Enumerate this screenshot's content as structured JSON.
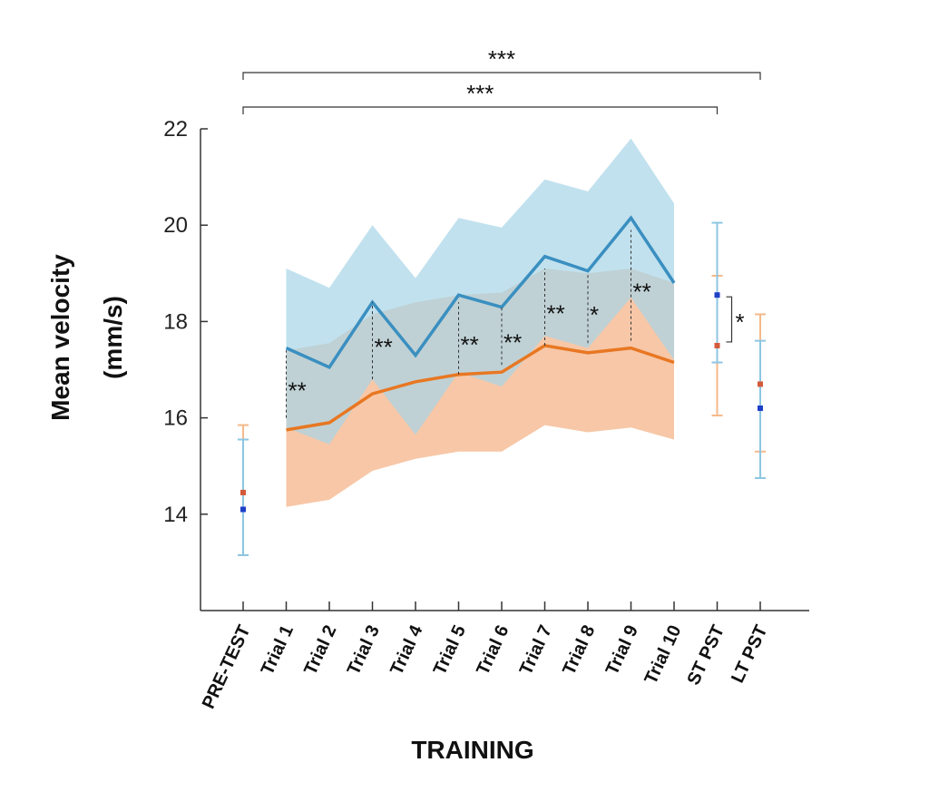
{
  "chart_data": {
    "type": "line",
    "title": "",
    "xlabel": "TRAINING",
    "ylabel": [
      "Mean velocity",
      "(mm/s)"
    ],
    "ylim": [
      12,
      22
    ],
    "yticks": [
      14,
      16,
      18,
      20,
      22
    ],
    "categories": [
      "PRE-TEST",
      "Trial 1",
      "Trial 2",
      "Trial 3",
      "Trial 4",
      "Trial 5",
      "Trial 6",
      "Trial 7",
      "Trial 8",
      "Trial 9",
      "Trial 10",
      "ST PST",
      "LT PST"
    ],
    "training_series": [
      {
        "color": "#3a8fc0",
        "band_color": "#a9d6e8",
        "mean": [
          17.45,
          17.05,
          18.4,
          17.3,
          18.55,
          18.3,
          19.35,
          19.05,
          20.15,
          18.8
        ],
        "upper": [
          19.1,
          18.7,
          20.0,
          18.9,
          20.15,
          19.95,
          20.95,
          20.7,
          21.8,
          20.45
        ],
        "lower": [
          15.8,
          15.45,
          16.8,
          15.65,
          16.95,
          16.65,
          17.7,
          17.45,
          18.5,
          17.2
        ]
      },
      {
        "color": "#e87722",
        "band_color": "#f7c4a2",
        "mean": [
          15.75,
          15.9,
          16.5,
          16.75,
          16.9,
          16.95,
          17.5,
          17.35,
          17.45,
          17.15
        ],
        "upper": [
          17.4,
          17.55,
          18.15,
          18.4,
          18.55,
          18.6,
          19.1,
          19.0,
          19.1,
          18.8
        ],
        "lower": [
          14.15,
          14.3,
          14.9,
          15.15,
          15.3,
          15.3,
          15.85,
          15.7,
          15.8,
          15.55
        ]
      }
    ],
    "test_points": [
      {
        "category": "PRE-TEST",
        "blue_mean": 14.1,
        "blue_err": [
          13.15,
          15.55
        ],
        "orange_mean": 14.45,
        "orange_err": [
          13.15,
          15.85
        ]
      },
      {
        "category": "ST PST",
        "blue_mean": 18.55,
        "blue_err": [
          17.15,
          20.05
        ],
        "orange_mean": 17.5,
        "orange_err": [
          16.05,
          18.95
        ]
      },
      {
        "category": "LT PST",
        "blue_mean": 16.2,
        "blue_err": [
          14.75,
          17.6
        ],
        "orange_mean": 16.7,
        "orange_err": [
          15.3,
          18.15
        ]
      }
    ],
    "trial_significance": [
      {
        "category": "Trial 1",
        "label": "**",
        "low": 16.0,
        "high": 17.4
      },
      {
        "category": "Trial 3",
        "label": "**",
        "low": 16.8,
        "high": 18.4
      },
      {
        "category": "Trial 5",
        "label": "**",
        "low": 16.9,
        "high": 18.4
      },
      {
        "category": "Trial 6",
        "label": "**",
        "low": 17.1,
        "high": 18.3
      },
      {
        "category": "Trial 7",
        "label": "**",
        "low": 17.5,
        "high": 19.1
      },
      {
        "category": "Trial 8",
        "label": "*",
        "low": 17.55,
        "high": 19.0
      },
      {
        "category": "Trial 9",
        "label": "**",
        "low": 17.6,
        "high": 19.9
      }
    ],
    "brackets": [
      {
        "from": "PRE-TEST",
        "to": "LT PST",
        "label": "***"
      },
      {
        "from": "PRE-TEST",
        "to": "ST PST",
        "label": "***"
      }
    ],
    "st_bracket": {
      "category": "ST PST",
      "label": "*",
      "low": 17.5,
      "high": 18.55
    },
    "grid": false,
    "legend": "none"
  }
}
